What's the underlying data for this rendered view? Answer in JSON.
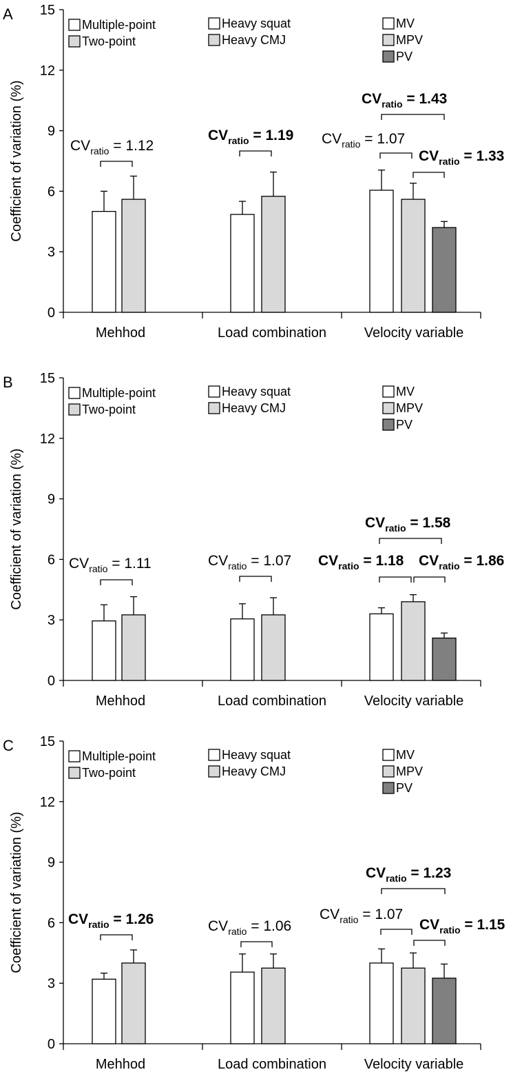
{
  "colors": {
    "white": "#ffffff",
    "light_gray": "#d9d9d9",
    "dark_gray": "#808080",
    "axis": "#000000"
  },
  "chart_data": [
    {
      "type": "bar",
      "panel_label": "A",
      "ylabel": "Coefficient of variation (%)",
      "ylim": [
        0,
        15
      ],
      "yticks": [
        "0",
        "3",
        "6",
        "9",
        "12",
        "15"
      ],
      "categories": [
        "Mehhod",
        "Load combination",
        "Velocity variable"
      ],
      "legends": [
        [
          "Multiple-point",
          "Two-point"
        ],
        [
          "Heavy squat",
          "Heavy CMJ"
        ],
        [
          "MV",
          "MPV",
          "PV"
        ]
      ],
      "groups": [
        {
          "category": "Mehhod",
          "bars": [
            {
              "name": "Multiple-point",
              "value": 5.0,
              "error": 1.0
            },
            {
              "name": "Two-point",
              "value": 5.6,
              "error": 1.15
            }
          ]
        },
        {
          "category": "Load combination",
          "bars": [
            {
              "name": "Heavy squat",
              "value": 4.85,
              "error": 0.65
            },
            {
              "name": "Heavy CMJ",
              "value": 5.75,
              "error": 1.2
            }
          ]
        },
        {
          "category": "Velocity variable",
          "bars": [
            {
              "name": "MV",
              "value": 6.05,
              "error": 1.0
            },
            {
              "name": "MPV",
              "value": 5.6,
              "error": 0.8
            },
            {
              "name": "PV",
              "value": 4.2,
              "error": 0.3
            }
          ]
        }
      ],
      "annotations": [
        {
          "main": "CV",
          "sub": "ratio",
          "rest": " = 1.12",
          "bold": false
        },
        {
          "main": "CV",
          "sub": "ratio",
          "rest": " = 1.19",
          "bold": true
        },
        {
          "main": "CV",
          "sub": "ratio",
          "rest": " = 1.07",
          "bold": false
        },
        {
          "main": "CV",
          "sub": "ratio",
          "rest": " = 1.33",
          "bold": true
        },
        {
          "main": "CV",
          "sub": "ratio",
          "rest": " = 1.43",
          "bold": true
        }
      ]
    },
    {
      "type": "bar",
      "panel_label": "B",
      "ylabel": "Coefficient of variation (%)",
      "ylim": [
        0,
        15
      ],
      "yticks": [
        "0",
        "3",
        "6",
        "9",
        "12",
        "15"
      ],
      "categories": [
        "Mehhod",
        "Load combination",
        "Velocity variable"
      ],
      "legends": [
        [
          "Multiple-point",
          "Two-point"
        ],
        [
          "Heavy squat",
          "Heavy CMJ"
        ],
        [
          "MV",
          "MPV",
          "PV"
        ]
      ],
      "groups": [
        {
          "category": "Mehhod",
          "bars": [
            {
              "name": "Multiple-point",
              "value": 2.95,
              "error": 0.8
            },
            {
              "name": "Two-point",
              "value": 3.25,
              "error": 0.9
            }
          ]
        },
        {
          "category": "Load combination",
          "bars": [
            {
              "name": "Heavy squat",
              "value": 3.05,
              "error": 0.75
            },
            {
              "name": "Heavy CMJ",
              "value": 3.25,
              "error": 0.85
            }
          ]
        },
        {
          "category": "Velocity variable",
          "bars": [
            {
              "name": "MV",
              "value": 3.3,
              "error": 0.3
            },
            {
              "name": "MPV",
              "value": 3.9,
              "error": 0.35
            },
            {
              "name": "PV",
              "value": 2.1,
              "error": 0.25
            }
          ]
        }
      ],
      "annotations": [
        {
          "main": "CV",
          "sub": "ratio",
          "rest": " = 1.11",
          "bold": false
        },
        {
          "main": "CV",
          "sub": "ratio",
          "rest": " = 1.07",
          "bold": false
        },
        {
          "main": "CV",
          "sub": "ratio",
          "rest": " = 1.18",
          "bold": true
        },
        {
          "main": "CV",
          "sub": "ratio",
          "rest": " = 1.86",
          "bold": true
        },
        {
          "main": "CV",
          "sub": "ratio",
          "rest": " = 1.58",
          "bold": true
        }
      ]
    },
    {
      "type": "bar",
      "panel_label": "C",
      "ylabel": "Coefficient of variation (%)",
      "ylim": [
        0,
        15
      ],
      "yticks": [
        "0",
        "3",
        "6",
        "9",
        "12",
        "15"
      ],
      "categories": [
        "Mehhod",
        "Load combination",
        "Velocity variable"
      ],
      "legends": [
        [
          "Multiple-point",
          "Two-point"
        ],
        [
          "Heavy squat",
          "Heavy CMJ"
        ],
        [
          "MV",
          "MPV",
          "PV"
        ]
      ],
      "groups": [
        {
          "category": "Mehhod",
          "bars": [
            {
              "name": "Multiple-point",
              "value": 3.2,
              "error": 0.3
            },
            {
              "name": "Two-point",
              "value": 4.0,
              "error": 0.65
            }
          ]
        },
        {
          "category": "Load combination",
          "bars": [
            {
              "name": "Heavy squat",
              "value": 3.55,
              "error": 0.9
            },
            {
              "name": "Heavy CMJ",
              "value": 3.75,
              "error": 0.7
            }
          ]
        },
        {
          "category": "Velocity variable",
          "bars": [
            {
              "name": "MV",
              "value": 4.0,
              "error": 0.7
            },
            {
              "name": "MPV",
              "value": 3.75,
              "error": 0.75
            },
            {
              "name": "PV",
              "value": 3.25,
              "error": 0.7
            }
          ]
        }
      ],
      "annotations": [
        {
          "main": "CV",
          "sub": "ratio",
          "rest": " = 1.26",
          "bold": true
        },
        {
          "main": "CV",
          "sub": "ratio",
          "rest": " = 1.06",
          "bold": false
        },
        {
          "main": "CV",
          "sub": "ratio",
          "rest": " = 1.07",
          "bold": false
        },
        {
          "main": "CV",
          "sub": "ratio",
          "rest": " = 1.15",
          "bold": true
        },
        {
          "main": "CV",
          "sub": "ratio",
          "rest": " = 1.23",
          "bold": true
        }
      ]
    }
  ]
}
